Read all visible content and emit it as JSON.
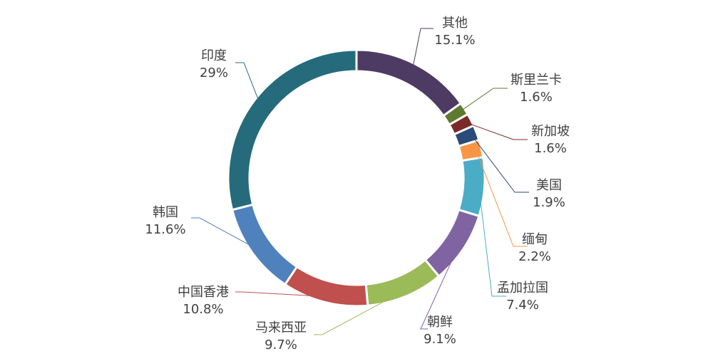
{
  "chart_data": {
    "type": "pie",
    "donut": true,
    "title": "",
    "legend": "none",
    "slices": [
      {
        "label": "其他",
        "value": 15.1,
        "value_label": "15.1%",
        "color": "#4E3B63"
      },
      {
        "label": "斯里兰卡",
        "value": 1.6,
        "value_label": "1.6%",
        "color": "#5E7A2E"
      },
      {
        "label": "新加坡",
        "value": 1.6,
        "value_label": "1.6%",
        "color": "#7A2A28"
      },
      {
        "label": "美国",
        "value": 1.9,
        "value_label": "1.9%",
        "color": "#2A4A78"
      },
      {
        "label": "缅甸",
        "value": 2.2,
        "value_label": "2.2%",
        "color": "#F79646"
      },
      {
        "label": "孟加拉国",
        "value": 7.4,
        "value_label": "7.4%",
        "color": "#4BACC6"
      },
      {
        "label": "朝鲜",
        "value": 9.1,
        "value_label": "9.1%",
        "color": "#8064A2"
      },
      {
        "label": "马来西亚",
        "value": 9.7,
        "value_label": "9.7%",
        "color": "#9BBB59"
      },
      {
        "label": "中国香港",
        "value": 10.8,
        "value_label": "10.8%",
        "color": "#C0504D"
      },
      {
        "label": "韩国",
        "value": 11.6,
        "value_label": "11.6%",
        "color": "#4F81BD"
      },
      {
        "label": "印度",
        "value": 29,
        "value_label": "29%",
        "color": "#256B7C"
      }
    ]
  }
}
